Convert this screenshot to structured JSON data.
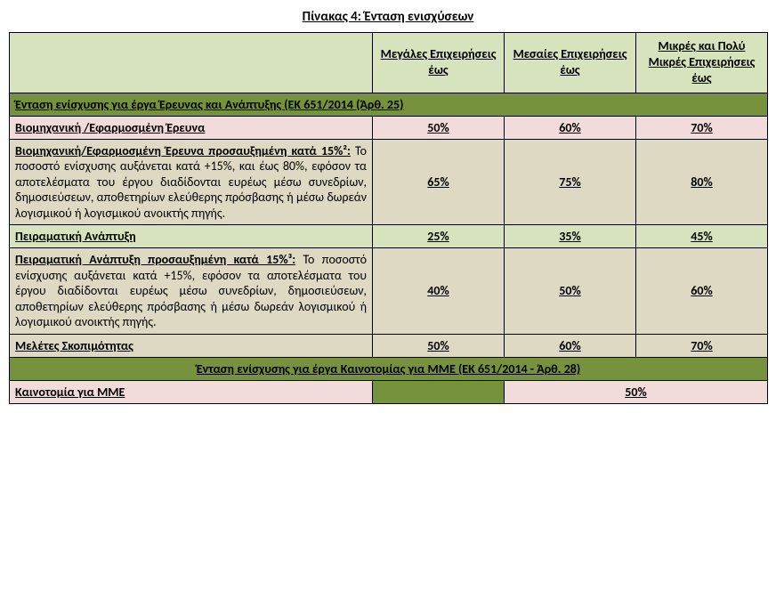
{
  "title": "Πίνακας 4: Ένταση ενισχύσεων",
  "headers": {
    "col0": "",
    "col1": "Μεγάλες Επιχειρήσεις έως",
    "col2": "Μεσαίες Επιχειρήσεις έως",
    "col3": "Μικρές και Πολύ Μικρές Επιχειρήσεις έως"
  },
  "section1": "Ένταση ενίσχυσης για έργα Έρευνας και Ανάπτυξης (ΕΚ 651/2014 (Άρθ. 25)",
  "rows": {
    "r1": {
      "label": "Βιομηχανική /Εφαρμοσμένη Έρευνα",
      "v1": "50%",
      "v2": "60%",
      "v3": "70%"
    },
    "r2": {
      "lead": "Βιομηχανική/Εφαρμοσμένη Έρευνα προσαυξημένη κατά 15%²:",
      "rest": " Το ποσοστό ενίσχυσης αυξάνεται κατά +15%, και έως 80%, εφόσον τα αποτελέσματα του έργου διαδίδονται ευρέως μέσω συνεδρίων, δημοσιεύσεων, αποθετηρίων ελεύθερης πρόσβασης ή μέσω δωρεάν λογισμικού ή λογισμικού ανοικτής πηγής.",
      "v1": "65%",
      "v2": "75%",
      "v3": "80%"
    },
    "r3": {
      "label": "Πειραματική Ανάπτυξη",
      "v1": "25%",
      "v2": "35%",
      "v3": "45%"
    },
    "r4": {
      "lead": "Πειραματική Ανάπτυξη προσαυξημένη κατά 15%³:",
      "rest": " Το ποσοστό ενίσχυσης αυξάνεται κατά +15%, εφόσον τα αποτελέσματα του έργου διαδίδονται ευρέως μέσω συνεδρίων, δημοσιεύσεων, αποθετηρίων ελεύθερης πρόσβασης ή μέσω δωρεάν λογισμικού ή λογισμικού ανοικτής πηγής.",
      "v1": "40%",
      "v2": "50%",
      "v3": "60%"
    },
    "r5": {
      "label": "Μελέτες Σκοπιμότητας",
      "v1": "50%",
      "v2": "60%",
      "v3": "70%"
    }
  },
  "section2": "Ένταση ενίσχυσης για έργα Καινοτομίας για ΜΜΕ (ΕΚ 651/2014 - Άρθ. 28)",
  "r6": {
    "label": "Καινοτομία για ΜΜΕ",
    "v": "50%"
  }
}
